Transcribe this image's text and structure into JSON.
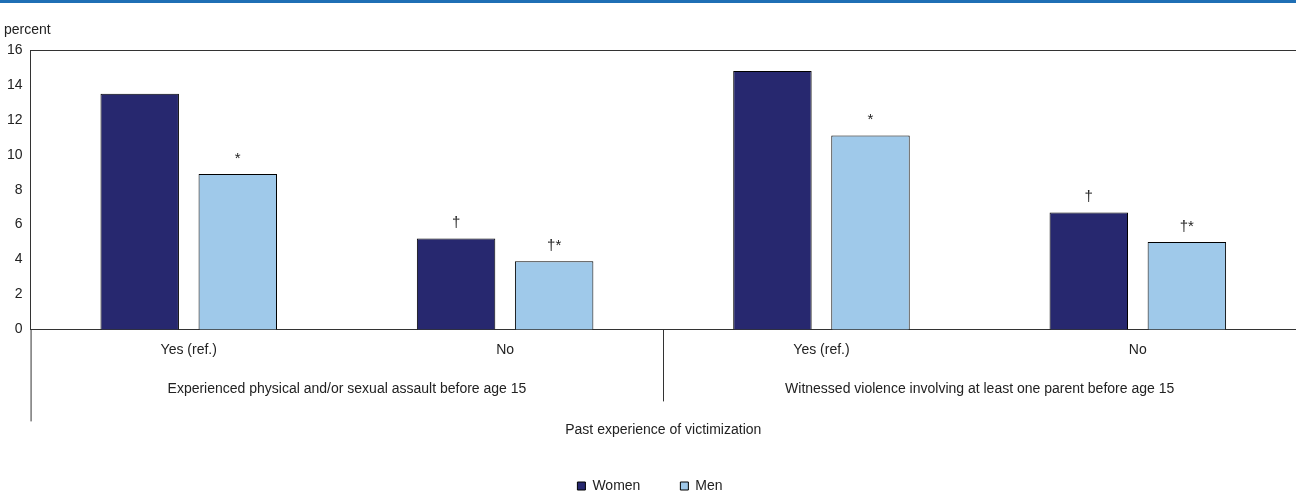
{
  "chart_data": {
    "type": "bar",
    "ylabel": "percent",
    "xlabel": "Past experience of victimization",
    "categories": [
      "Yes (ref.)",
      "No",
      "Yes (ref.)",
      "No"
    ],
    "annotations": [
      "Experienced physical and/or sexual assault before age 15",
      "Witnessed violence involving at least one parent before age 15"
    ],
    "series": [
      {
        "name": "Women",
        "color": "#27286f",
        "values": [
          13.5,
          5.2,
          14.8,
          6.7
        ],
        "value_labels": [
          null,
          "†",
          null,
          "†"
        ]
      },
      {
        "name": "Men",
        "color": "#9fc9ea",
        "values": [
          8.9,
          3.9,
          11.1,
          5.0
        ],
        "value_labels": [
          "*",
          "†*",
          "*",
          "†*"
        ]
      }
    ],
    "ylim": [
      0,
      16
    ],
    "yticks": [
      0,
      2,
      4,
      6,
      8,
      10,
      12,
      14,
      16
    ],
    "grid": false,
    "legend": "bottom"
  }
}
